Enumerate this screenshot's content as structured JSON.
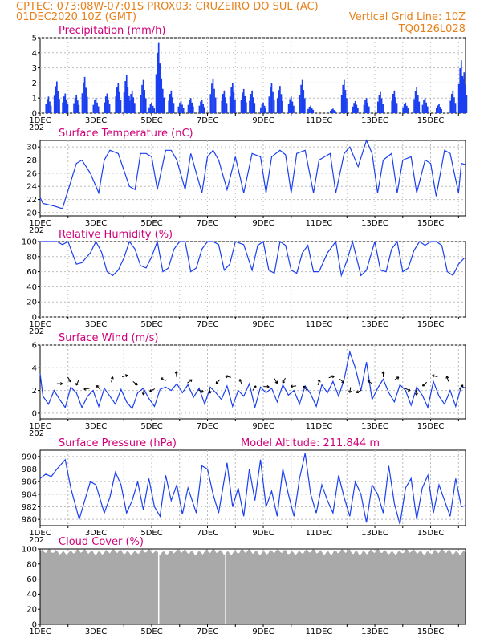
{
  "header": {
    "left_line1": "CPTEC:   073:08W-07:01S   PROX03: CRUZEIRO DO SUL (AC)",
    "left_line2": "01DEC2020 10Z (GMT)",
    "right_line2": "Vertical Grid Line: 10Z",
    "right_line3": "TQ0126L028"
  },
  "colors": {
    "header": "#e8801a",
    "title": "#d0007a",
    "series": "#1a3ff0",
    "cloud": "#a9a9a9"
  },
  "x_axis": {
    "labels": [
      "1DEC",
      "3DEC",
      "5DEC",
      "7DEC",
      "9DEC",
      "11DEC",
      "13DEC",
      "15DEC"
    ],
    "label_days": [
      0,
      2,
      4,
      6,
      8,
      10,
      12,
      14
    ],
    "truncated_year": "202",
    "range_days": [
      0,
      15.25
    ]
  },
  "chart_data": [
    {
      "type": "bar",
      "title": "Precipitation (mm/h)",
      "ylim": [
        0,
        5
      ],
      "yticks": [
        0,
        1,
        2,
        3,
        4,
        5
      ],
      "grid": true,
      "peaks": [
        {
          "day": 0.3,
          "v": 1.1
        },
        {
          "day": 0.6,
          "v": 2.1
        },
        {
          "day": 0.9,
          "v": 1.3
        },
        {
          "day": 1.3,
          "v": 1.2
        },
        {
          "day": 1.6,
          "v": 2.4
        },
        {
          "day": 2.0,
          "v": 1.0
        },
        {
          "day": 2.4,
          "v": 1.3
        },
        {
          "day": 2.8,
          "v": 2.0
        },
        {
          "day": 3.1,
          "v": 2.5
        },
        {
          "day": 3.3,
          "v": 1.5
        },
        {
          "day": 3.7,
          "v": 2.2
        },
        {
          "day": 4.0,
          "v": 0.7
        },
        {
          "day": 4.25,
          "v": 4.7
        },
        {
          "day": 4.35,
          "v": 2.3
        },
        {
          "day": 4.7,
          "v": 1.5
        },
        {
          "day": 5.05,
          "v": 0.8
        },
        {
          "day": 5.4,
          "v": 1.0
        },
        {
          "day": 5.8,
          "v": 0.9
        },
        {
          "day": 6.2,
          "v": 2.3
        },
        {
          "day": 6.6,
          "v": 1.5
        },
        {
          "day": 6.9,
          "v": 2.0
        },
        {
          "day": 7.3,
          "v": 1.6
        },
        {
          "day": 7.6,
          "v": 1.5
        },
        {
          "day": 8.0,
          "v": 0.7
        },
        {
          "day": 8.3,
          "v": 2.0
        },
        {
          "day": 8.6,
          "v": 1.8
        },
        {
          "day": 9.0,
          "v": 1.1
        },
        {
          "day": 9.4,
          "v": 2.2
        },
        {
          "day": 9.7,
          "v": 0.5
        },
        {
          "day": 10.5,
          "v": 0.3
        },
        {
          "day": 10.9,
          "v": 2.2
        },
        {
          "day": 11.3,
          "v": 0.8
        },
        {
          "day": 11.7,
          "v": 1.0
        },
        {
          "day": 12.2,
          "v": 1.4
        },
        {
          "day": 12.7,
          "v": 1.5
        },
        {
          "day": 13.1,
          "v": 0.7
        },
        {
          "day": 13.5,
          "v": 1.7
        },
        {
          "day": 13.8,
          "v": 1.0
        },
        {
          "day": 14.3,
          "v": 0.6
        },
        {
          "day": 14.8,
          "v": 1.5
        },
        {
          "day": 15.1,
          "v": 3.5
        },
        {
          "day": 15.2,
          "v": 2.7
        }
      ]
    },
    {
      "type": "line",
      "title": "Surface Temperature (nC)",
      "ylim": [
        19.5,
        31
      ],
      "yticks": [
        20,
        22,
        24,
        26,
        28,
        30
      ],
      "grid": true,
      "x": [
        0,
        0.1,
        0.5,
        0.8,
        1.3,
        1.5,
        1.8,
        2.1,
        2.3,
        2.5,
        2.8,
        3.2,
        3.4,
        3.6,
        3.8,
        4.0,
        4.2,
        4.5,
        4.7,
        4.9,
        5.2,
        5.4,
        5.8,
        6.0,
        6.2,
        6.4,
        6.7,
        7.0,
        7.3,
        7.6,
        7.9,
        8.1,
        8.3,
        8.6,
        8.8,
        9.0,
        9.2,
        9.5,
        9.8,
        10.0,
        10.2,
        10.4,
        10.6,
        10.9,
        11.1,
        11.4,
        11.7,
        11.9,
        12.1,
        12.3,
        12.6,
        12.8,
        13.0,
        13.3,
        13.5,
        13.8,
        14.0,
        14.2,
        14.5,
        14.7,
        15.0,
        15.1,
        15.25
      ],
      "values": [
        22.3,
        21.4,
        21.0,
        20.6,
        27.5,
        28.0,
        26.0,
        23.0,
        28.0,
        29.5,
        29.0,
        24.0,
        23.5,
        29.0,
        29.0,
        28.5,
        23.5,
        29.5,
        29.5,
        28.0,
        23.5,
        29.0,
        23.0,
        28.5,
        29.5,
        28.0,
        23.5,
        28.5,
        23.0,
        29.0,
        28.5,
        23.0,
        28.5,
        29.5,
        28.8,
        23.0,
        29.0,
        29.5,
        23.0,
        28.0,
        28.5,
        29.0,
        23.0,
        29.0,
        30.0,
        27.0,
        31.0,
        29.0,
        23.0,
        28.0,
        29.0,
        23.0,
        28.0,
        28.5,
        23.0,
        28.0,
        27.5,
        22.5,
        29.5,
        29.0,
        23.0,
        27.5,
        27.3
      ]
    },
    {
      "type": "line",
      "title": "Relative Humidity (%)",
      "ylim": [
        0,
        100
      ],
      "yticks": [
        0,
        20,
        40,
        60,
        80,
        100
      ],
      "grid": true,
      "x": [
        0,
        0.2,
        0.4,
        0.6,
        0.8,
        1.0,
        1.3,
        1.5,
        1.8,
        2.0,
        2.2,
        2.4,
        2.6,
        2.8,
        3.0,
        3.2,
        3.4,
        3.6,
        3.8,
        4.0,
        4.2,
        4.4,
        4.6,
        4.8,
        5.0,
        5.2,
        5.4,
        5.6,
        5.8,
        6.0,
        6.2,
        6.4,
        6.6,
        6.8,
        7.0,
        7.3,
        7.6,
        7.8,
        8.0,
        8.2,
        8.4,
        8.6,
        8.8,
        9.0,
        9.2,
        9.4,
        9.6,
        9.8,
        10.0,
        10.3,
        10.6,
        10.8,
        11.0,
        11.2,
        11.5,
        11.7,
        12.0,
        12.2,
        12.4,
        12.6,
        12.8,
        13.0,
        13.2,
        13.4,
        13.6,
        13.8,
        14.0,
        14.2,
        14.4,
        14.6,
        14.8,
        15.0,
        15.2,
        15.25
      ],
      "values": [
        100,
        100,
        100,
        100,
        96,
        100,
        70,
        72,
        85,
        100,
        86,
        60,
        55,
        62,
        78,
        100,
        90,
        68,
        65,
        80,
        100,
        60,
        65,
        90,
        100,
        100,
        60,
        65,
        90,
        100,
        100,
        96,
        62,
        70,
        100,
        96,
        62,
        95,
        100,
        62,
        58,
        100,
        95,
        62,
        58,
        85,
        95,
        60,
        60,
        85,
        100,
        55,
        75,
        100,
        55,
        62,
        100,
        62,
        60,
        90,
        100,
        60,
        65,
        88,
        100,
        95,
        100,
        100,
        95,
        60,
        55,
        70,
        78,
        78
      ]
    },
    {
      "type": "line",
      "title": "Surface Wind (m/s)",
      "ylim": [
        -0.5,
        6
      ],
      "yticks": [
        0,
        2,
        4,
        6
      ],
      "grid": true,
      "x": [
        0,
        0.1,
        0.3,
        0.5,
        0.7,
        0.9,
        1.1,
        1.3,
        1.5,
        1.7,
        1.9,
        2.1,
        2.3,
        2.5,
        2.7,
        2.9,
        3.1,
        3.3,
        3.5,
        3.7,
        3.9,
        4.1,
        4.3,
        4.5,
        4.7,
        4.9,
        5.1,
        5.3,
        5.5,
        5.7,
        5.9,
        6.1,
        6.3,
        6.5,
        6.7,
        6.9,
        7.1,
        7.3,
        7.5,
        7.7,
        7.9,
        8.1,
        8.3,
        8.5,
        8.7,
        8.9,
        9.1,
        9.3,
        9.5,
        9.7,
        9.9,
        10.1,
        10.3,
        10.5,
        10.7,
        10.9,
        11.1,
        11.3,
        11.5,
        11.7,
        11.9,
        12.1,
        12.3,
        12.5,
        12.7,
        12.9,
        13.1,
        13.3,
        13.5,
        13.7,
        13.9,
        14.1,
        14.3,
        14.5,
        14.7,
        14.9,
        15.1,
        15.25
      ],
      "values": [
        3.5,
        1.5,
        0.8,
        2.0,
        1.2,
        0.5,
        2.3,
        1.8,
        0.5,
        1.5,
        2.0,
        0.6,
        2.2,
        1.5,
        0.8,
        2.1,
        1.0,
        0.4,
        1.8,
        2.2,
        1.3,
        0.6,
        2.1,
        2.3,
        2.0,
        2.6,
        1.8,
        2.5,
        1.4,
        2.2,
        0.8,
        2.3,
        1.8,
        1.2,
        2.4,
        0.6,
        2.0,
        1.5,
        2.6,
        0.5,
        2.3,
        1.8,
        2.2,
        1.0,
        2.5,
        1.6,
        2.0,
        0.8,
        2.4,
        1.7,
        0.6,
        2.5,
        1.8,
        2.8,
        1.5,
        3.0,
        5.4,
        4.0,
        2.0,
        4.5,
        1.2,
        2.2,
        3.0,
        1.8,
        1.0,
        2.5,
        2.0,
        0.7,
        2.3,
        1.6,
        0.5,
        2.8,
        1.5,
        0.8,
        2.0,
        0.6,
        2.4,
        2.2
      ]
    },
    {
      "type": "line",
      "title": "Surface Pressure (hPa)",
      "annotation": "Model Altitude: 211.844  m",
      "ylim": [
        979,
        991
      ],
      "yticks": [
        980,
        982,
        984,
        986,
        988,
        990
      ],
      "grid": true,
      "x": [
        0,
        0.2,
        0.4,
        0.6,
        0.9,
        1.1,
        1.4,
        1.6,
        1.8,
        2.0,
        2.3,
        2.5,
        2.7,
        2.9,
        3.1,
        3.3,
        3.5,
        3.7,
        3.9,
        4.1,
        4.3,
        4.5,
        4.7,
        4.9,
        5.1,
        5.3,
        5.6,
        5.8,
        6.0,
        6.2,
        6.4,
        6.7,
        6.9,
        7.1,
        7.3,
        7.5,
        7.7,
        7.9,
        8.1,
        8.3,
        8.5,
        8.7,
        8.9,
        9.1,
        9.3,
        9.5,
        9.7,
        9.9,
        10.1,
        10.3,
        10.5,
        10.7,
        10.9,
        11.1,
        11.3,
        11.5,
        11.7,
        11.9,
        12.1,
        12.3,
        12.5,
        12.7,
        12.9,
        13.1,
        13.3,
        13.5,
        13.7,
        13.9,
        14.1,
        14.3,
        14.5,
        14.7,
        14.9,
        15.1,
        15.25
      ],
      "values": [
        986.5,
        987.2,
        986.8,
        988.0,
        989.5,
        985.0,
        980.0,
        983.0,
        986.0,
        985.5,
        981.0,
        983.5,
        987.5,
        985.5,
        981.0,
        983.0,
        986.0,
        981.5,
        986.5,
        982.0,
        980.5,
        987.0,
        983.0,
        985.5,
        980.8,
        985.0,
        981.0,
        988.5,
        988.0,
        984.0,
        981.0,
        989.0,
        982.0,
        985.0,
        980.5,
        988.0,
        983.0,
        989.5,
        982.0,
        984.5,
        980.5,
        988.0,
        984.0,
        980.5,
        986.5,
        990.5,
        984.0,
        981.0,
        985.5,
        983.0,
        981.0,
        987.0,
        983.5,
        980.5,
        986.0,
        984.0,
        979.5,
        985.5,
        984.0,
        981.0,
        988.5,
        982.5,
        979.2,
        985.0,
        986.5,
        980.0,
        985.0,
        987.0,
        981.0,
        985.5,
        983.0,
        980.5,
        986.5,
        982.0,
        982.2
      ]
    },
    {
      "type": "area",
      "title": "Cloud Cover (%)",
      "ylim": [
        0,
        100
      ],
      "yticks": [
        0,
        20,
        40,
        60,
        80,
        100
      ],
      "grid": true,
      "typical_value": 96,
      "gap_days": [
        4.25,
        6.65
      ]
    }
  ]
}
